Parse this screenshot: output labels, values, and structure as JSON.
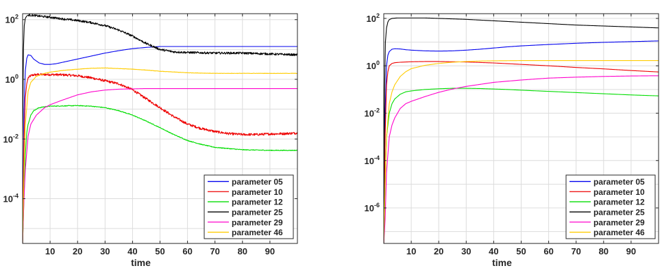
{
  "chart_data": [
    {
      "type": "line",
      "yscale": "log",
      "title": "",
      "xlabel": "time",
      "ylabel": "",
      "xlim": [
        0,
        100
      ],
      "ylim_log10": [
        -5.5,
        2.2
      ],
      "xticks": [
        "10",
        "20",
        "30",
        "40",
        "50",
        "60",
        "70",
        "80",
        "90"
      ],
      "yticks": [
        {
          "base": "10",
          "exp": "2",
          "value": 2
        },
        {
          "base": "10",
          "exp": "0",
          "value": 0
        },
        {
          "base": "10",
          "exp": "-2",
          "value": -2
        },
        {
          "base": "10",
          "exp": "-4",
          "value": -4
        }
      ],
      "grid": true,
      "legend_position": "bottom-right",
      "series": [
        {
          "name": "parameter 05",
          "color": "#0000ee",
          "noise": 0,
          "x": [
            0,
            0.5,
            1,
            1.5,
            2,
            3,
            4,
            6,
            8,
            10,
            12,
            15,
            20,
            25,
            30,
            35,
            40,
            45,
            50,
            55,
            60,
            70,
            80,
            90,
            100
          ],
          "y": [
            -5.5,
            -1,
            0.3,
            0.7,
            0.82,
            0.8,
            0.68,
            0.55,
            0.5,
            0.5,
            0.52,
            0.58,
            0.68,
            0.78,
            0.88,
            0.96,
            1.03,
            1.07,
            1.1,
            1.1,
            1.1,
            1.1,
            1.1,
            1.1,
            1.1
          ]
        },
        {
          "name": "parameter 10",
          "color": "#ee0000",
          "noise": 0.04,
          "x": [
            0,
            0.5,
            1,
            1.5,
            2,
            3,
            4,
            6,
            10,
            15,
            20,
            25,
            30,
            35,
            40,
            45,
            50,
            55,
            60,
            65,
            70,
            75,
            80,
            85,
            90,
            95,
            100
          ],
          "y": [
            -5.5,
            -2,
            -0.6,
            -0.15,
            0.05,
            0.12,
            0.15,
            0.16,
            0.16,
            0.15,
            0.12,
            0.05,
            -0.05,
            -0.15,
            -0.35,
            -0.65,
            -0.95,
            -1.25,
            -1.5,
            -1.65,
            -1.75,
            -1.82,
            -1.85,
            -1.85,
            -1.83,
            -1.82,
            -1.8
          ]
        },
        {
          "name": "parameter 12",
          "color": "#00dd00",
          "noise": 0.012,
          "x": [
            0,
            0.5,
            1,
            1.5,
            2,
            3,
            4,
            6,
            8,
            10,
            15,
            20,
            25,
            30,
            35,
            40,
            45,
            50,
            55,
            60,
            65,
            70,
            75,
            80,
            90,
            100
          ],
          "y": [
            -5.5,
            -4,
            -2.5,
            -1.8,
            -1.5,
            -1.2,
            -1.05,
            -0.95,
            -0.92,
            -0.9,
            -0.89,
            -0.88,
            -0.9,
            -0.95,
            -1.05,
            -1.2,
            -1.4,
            -1.62,
            -1.85,
            -2.05,
            -2.18,
            -2.28,
            -2.32,
            -2.36,
            -2.38,
            -2.38
          ]
        },
        {
          "name": "parameter 25",
          "color": "#000000",
          "noise": 0.035,
          "x": [
            0,
            0.3,
            0.6,
            1,
            1.5,
            2,
            3,
            5,
            8,
            10,
            15,
            20,
            25,
            30,
            35,
            40,
            45,
            50,
            55,
            60,
            70,
            80,
            90,
            100
          ],
          "y": [
            -2,
            1,
            1.8,
            2.05,
            2.12,
            2.15,
            2.15,
            2.13,
            2.1,
            2.08,
            2.02,
            1.97,
            1.9,
            1.8,
            1.65,
            1.45,
            1.2,
            1.0,
            0.92,
            0.9,
            0.88,
            0.88,
            0.85,
            0.82
          ]
        },
        {
          "name": "parameter 29",
          "color": "#ff00cc",
          "noise": 0,
          "x": [
            0,
            0.5,
            1,
            2,
            3,
            5,
            8,
            10,
            15,
            20,
            25,
            30,
            35,
            40,
            45,
            50,
            60,
            70,
            80,
            90,
            100
          ],
          "y": [
            -5.5,
            -4,
            -3,
            -1.9,
            -1.5,
            -1.2,
            -0.95,
            -0.85,
            -0.68,
            -0.52,
            -0.42,
            -0.36,
            -0.33,
            -0.32,
            -0.31,
            -0.31,
            -0.31,
            -0.31,
            -0.31,
            -0.31,
            -0.31
          ]
        },
        {
          "name": "parameter 46",
          "color": "#ffcc00",
          "noise": 0.006,
          "x": [
            0,
            0.5,
            1,
            2,
            3,
            5,
            8,
            10,
            15,
            20,
            25,
            30,
            35,
            40,
            45,
            50,
            60,
            70,
            80,
            90,
            100
          ],
          "y": [
            -5.5,
            -3,
            -1.5,
            -0.4,
            -0.1,
            0.1,
            0.2,
            0.24,
            0.3,
            0.34,
            0.37,
            0.38,
            0.36,
            0.34,
            0.31,
            0.27,
            0.22,
            0.2,
            0.2,
            0.2,
            0.2
          ]
        }
      ]
    },
    {
      "type": "line",
      "yscale": "log",
      "title": "",
      "xlabel": "time",
      "ylabel": "",
      "xlim": [
        0,
        100
      ],
      "ylim_log10": [
        -7.5,
        2.2
      ],
      "xticks": [
        "10",
        "20",
        "30",
        "40",
        "50",
        "60",
        "70",
        "80",
        "90"
      ],
      "yticks": [
        {
          "base": "10",
          "exp": "2",
          "value": 2
        },
        {
          "base": "10",
          "exp": "0",
          "value": 0
        },
        {
          "base": "10",
          "exp": "-2",
          "value": -2
        },
        {
          "base": "10",
          "exp": "-4",
          "value": -4
        },
        {
          "base": "10",
          "exp": "-6",
          "value": -6
        }
      ],
      "grid": true,
      "legend_position": "bottom-right",
      "series": [
        {
          "name": "parameter 05",
          "color": "#0000ee",
          "noise": 0,
          "x": [
            0,
            0.5,
            1,
            1.5,
            2,
            3,
            4,
            6,
            8,
            10,
            15,
            20,
            25,
            30,
            35,
            40,
            45,
            50,
            60,
            70,
            80,
            90,
            100
          ],
          "y": [
            -7.5,
            -2,
            0,
            0.45,
            0.6,
            0.7,
            0.72,
            0.71,
            0.68,
            0.66,
            0.63,
            0.62,
            0.63,
            0.66,
            0.7,
            0.75,
            0.8,
            0.84,
            0.9,
            0.95,
            0.99,
            1.02,
            1.05
          ]
        },
        {
          "name": "parameter 10",
          "color": "#ee0000",
          "noise": 0,
          "x": [
            0,
            0.5,
            1,
            1.5,
            2,
            3,
            4,
            6,
            8,
            10,
            15,
            20,
            25,
            30,
            35,
            40,
            45,
            50,
            60,
            70,
            80,
            90,
            100
          ],
          "y": [
            -7.5,
            -3,
            -0.8,
            -0.25,
            0,
            0.1,
            0.13,
            0.15,
            0.16,
            0.17,
            0.18,
            0.18,
            0.17,
            0.16,
            0.14,
            0.12,
            0.09,
            0.06,
            0.0,
            -0.07,
            -0.13,
            -0.2,
            -0.26
          ]
        },
        {
          "name": "parameter 12",
          "color": "#00dd00",
          "noise": 0,
          "x": [
            0,
            0.5,
            1,
            2,
            3,
            4,
            6,
            8,
            10,
            15,
            20,
            25,
            30,
            35,
            40,
            45,
            50,
            60,
            70,
            80,
            90,
            100
          ],
          "y": [
            -7.5,
            -5,
            -3,
            -2,
            -1.6,
            -1.4,
            -1.2,
            -1.1,
            -1.06,
            -1.0,
            -0.97,
            -0.95,
            -0.95,
            -0.96,
            -0.98,
            -1.0,
            -1.03,
            -1.08,
            -1.13,
            -1.18,
            -1.23,
            -1.27
          ]
        },
        {
          "name": "parameter 25",
          "color": "#000000",
          "noise": 0,
          "x": [
            0,
            0.3,
            0.6,
            1,
            1.5,
            2,
            3,
            5,
            8,
            10,
            15,
            20,
            25,
            30,
            40,
            50,
            60,
            70,
            80,
            90,
            100
          ],
          "y": [
            -7.5,
            -1,
            1,
            1.6,
            1.85,
            1.95,
            2.0,
            2.02,
            2.02,
            2.02,
            2.02,
            2.0,
            1.98,
            1.96,
            1.9,
            1.84,
            1.78,
            1.72,
            1.68,
            1.64,
            1.6
          ]
        },
        {
          "name": "parameter 29",
          "color": "#ff00cc",
          "noise": 0,
          "x": [
            0,
            0.5,
            1,
            2,
            3,
            4,
            6,
            8,
            10,
            15,
            20,
            25,
            30,
            40,
            50,
            60,
            70,
            80,
            90,
            100
          ],
          "y": [
            -7.5,
            -6.5,
            -4.5,
            -3,
            -2.5,
            -2.2,
            -1.8,
            -1.6,
            -1.5,
            -1.3,
            -1.12,
            -0.98,
            -0.87,
            -0.7,
            -0.6,
            -0.52,
            -0.48,
            -0.45,
            -0.43,
            -0.42
          ]
        },
        {
          "name": "parameter 46",
          "color": "#ffcc00",
          "noise": 0,
          "x": [
            0,
            0.5,
            1,
            2,
            3,
            4,
            6,
            8,
            10,
            15,
            20,
            25,
            30,
            35,
            40,
            50,
            60,
            70,
            80,
            90,
            100
          ],
          "y": [
            -7.5,
            -5,
            -3,
            -1.6,
            -1.1,
            -0.8,
            -0.45,
            -0.25,
            -0.12,
            0.02,
            0.1,
            0.15,
            0.18,
            0.2,
            0.21,
            0.22,
            0.22,
            0.22,
            0.22,
            0.22,
            0.22
          ]
        }
      ]
    }
  ]
}
